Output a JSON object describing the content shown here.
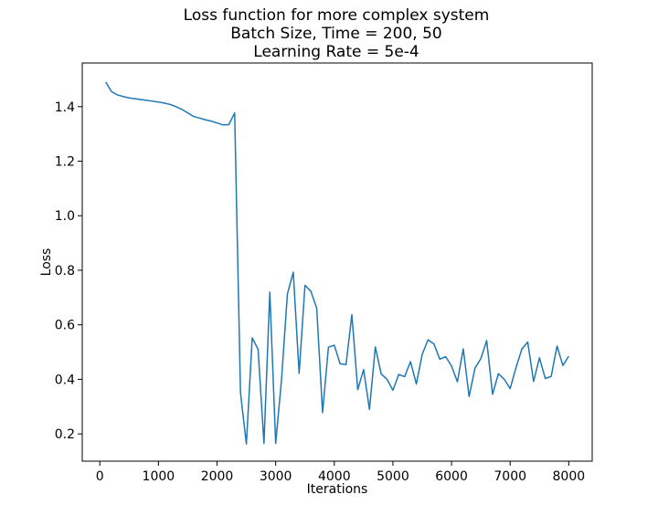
{
  "chart_data": {
    "type": "line",
    "title_lines": [
      "Loss function for more complex system",
      "Batch Size, Time = 200, 50",
      "Learning Rate = 5e-4"
    ],
    "xlabel": "Iterations",
    "ylabel": "Loss",
    "xlim": [
      -300,
      8400
    ],
    "ylim": [
      0.1,
      1.56
    ],
    "xticks": [
      0,
      1000,
      2000,
      3000,
      4000,
      5000,
      6000,
      7000,
      8000
    ],
    "yticks": [
      0.2,
      0.4,
      0.6,
      0.8,
      1.0,
      1.2,
      1.4
    ],
    "ytick_labels": [
      "0.2",
      "0.4",
      "0.6",
      "0.8",
      "1.0",
      "1.2",
      "1.4"
    ],
    "grid": false,
    "line_color": "#1f77b4",
    "series": [
      {
        "x": [
          100,
          200,
          300,
          400,
          500,
          600,
          700,
          800,
          900,
          1000,
          1100,
          1200,
          1300,
          1400,
          1500,
          1600,
          1700,
          1800,
          1900,
          2000,
          2100,
          2200,
          2300,
          2400,
          2500,
          2600,
          2700,
          2800,
          2900,
          3000,
          3100,
          3200,
          3300,
          3400,
          3500,
          3600,
          3700,
          3800,
          3900,
          4000,
          4100,
          4200,
          4300,
          4400,
          4500,
          4600,
          4700,
          4800,
          4900,
          5000,
          5100,
          5200,
          5300,
          5400,
          5500,
          5600,
          5700,
          5800,
          5900,
          6000,
          6100,
          6200,
          6300,
          6400,
          6500,
          6600,
          6700,
          6800,
          6900,
          7000,
          7100,
          7200,
          7300,
          7400,
          7500,
          7600,
          7700,
          7800,
          7900,
          8000
        ],
        "y": [
          1.49,
          1.455,
          1.443,
          1.437,
          1.432,
          1.429,
          1.426,
          1.423,
          1.42,
          1.417,
          1.413,
          1.408,
          1.4,
          1.39,
          1.377,
          1.364,
          1.358,
          1.352,
          1.347,
          1.34,
          1.333,
          1.334,
          1.377,
          0.35,
          0.163,
          0.552,
          0.51,
          0.165,
          0.72,
          0.165,
          0.4,
          0.713,
          0.793,
          0.422,
          0.745,
          0.723,
          0.661,
          0.278,
          0.518,
          0.525,
          0.457,
          0.454,
          0.637,
          0.362,
          0.436,
          0.29,
          0.519,
          0.42,
          0.4,
          0.36,
          0.418,
          0.41,
          0.465,
          0.383,
          0.492,
          0.545,
          0.53,
          0.474,
          0.483,
          0.449,
          0.391,
          0.512,
          0.337,
          0.441,
          0.476,
          0.542,
          0.345,
          0.421,
          0.4,
          0.366,
          0.443,
          0.511,
          0.537,
          0.392,
          0.479,
          0.403,
          0.411,
          0.522,
          0.451,
          0.485
        ]
      }
    ]
  }
}
